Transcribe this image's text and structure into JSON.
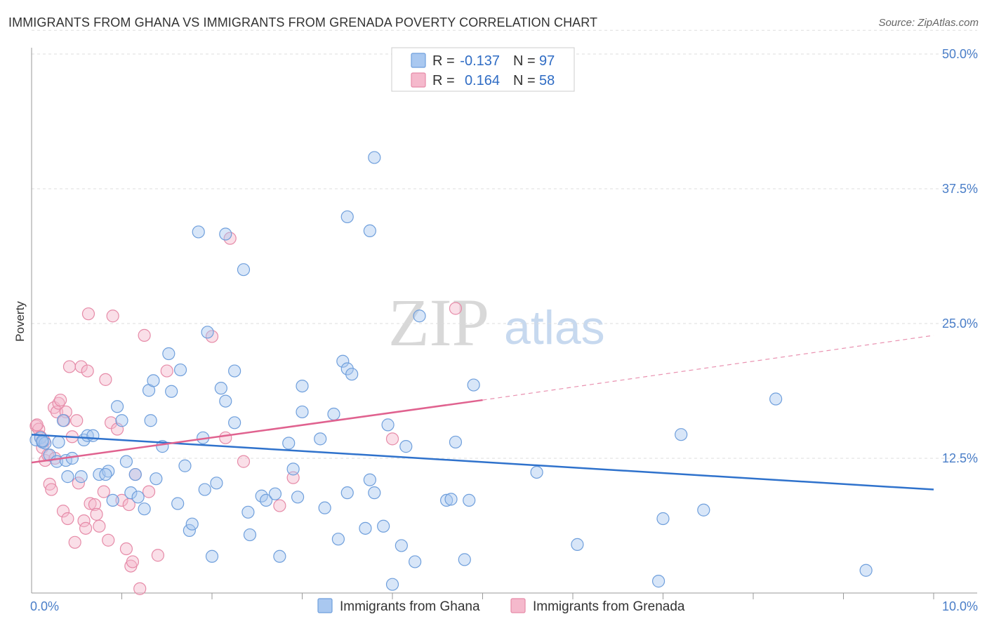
{
  "title": "IMMIGRANTS FROM GHANA VS IMMIGRANTS FROM GRENADA POVERTY CORRELATION CHART",
  "source": "Source: ZipAtlas.com",
  "watermark": {
    "zip": "ZIP",
    "atlas": "atlas"
  },
  "colors": {
    "ghana_fill": "#a9c8f0",
    "ghana_stroke": "#6f9fdc",
    "ghana_line": "#2f72cc",
    "grenada_fill": "#f5b9cc",
    "grenada_stroke": "#e68ba8",
    "grenada_line": "#e0628f",
    "tick_text": "#4a7ec8",
    "grid": "#dddddd"
  },
  "legend": {
    "rows": [
      {
        "r_label": "R =",
        "r_value": "-0.137",
        "n_label": "N =",
        "n_value": "97"
      },
      {
        "r_label": "R =",
        "r_value": "0.164",
        "n_label": "N =",
        "n_value": "58"
      }
    ]
  },
  "bottom_legend": [
    "Immigrants from Ghana",
    "Immigrants from Grenada"
  ],
  "chart_data": {
    "type": "scatter",
    "ylabel": "Poverty",
    "xlabel": "",
    "xlim": [
      0,
      10
    ],
    "ylim": [
      0,
      50
    ],
    "x_tick_labels": [
      "0.0%",
      "10.0%"
    ],
    "y_ticks": [
      12.5,
      25.0,
      37.5,
      50.0
    ],
    "y_tick_labels": [
      "12.5%",
      "25.0%",
      "37.5%",
      "50.0%"
    ],
    "grid": "horizontal dashed",
    "legend_position": "top-center",
    "series": [
      {
        "name": "Immigrants from Ghana",
        "r": -0.137,
        "n": 97,
        "trend": {
          "x": [
            0,
            10
          ],
          "y": [
            14.7,
            9.6
          ]
        },
        "points": [
          [
            0.05,
            14.2
          ],
          [
            0.1,
            14.4
          ],
          [
            0.12,
            14.0
          ],
          [
            0.15,
            13.9
          ],
          [
            0.2,
            12.8
          ],
          [
            0.28,
            12.2
          ],
          [
            0.35,
            16.0
          ],
          [
            0.38,
            12.3
          ],
          [
            0.45,
            12.5
          ],
          [
            0.4,
            10.8
          ],
          [
            0.55,
            10.8
          ],
          [
            0.58,
            14.2
          ],
          [
            0.62,
            14.6
          ],
          [
            0.68,
            14.6
          ],
          [
            0.75,
            11.0
          ],
          [
            0.85,
            11.3
          ],
          [
            0.82,
            11.0
          ],
          [
            0.9,
            8.6
          ],
          [
            0.95,
            17.3
          ],
          [
            1.0,
            16.0
          ],
          [
            1.05,
            12.2
          ],
          [
            1.1,
            9.3
          ],
          [
            1.15,
            11.0
          ],
          [
            1.18,
            8.9
          ],
          [
            1.3,
            18.8
          ],
          [
            1.25,
            7.8
          ],
          [
            1.32,
            16.0
          ],
          [
            1.38,
            10.6
          ],
          [
            1.35,
            19.7
          ],
          [
            1.45,
            13.6
          ],
          [
            1.52,
            22.2
          ],
          [
            1.55,
            18.7
          ],
          [
            1.62,
            8.3
          ],
          [
            1.65,
            20.7
          ],
          [
            1.7,
            11.8
          ],
          [
            1.75,
            5.8
          ],
          [
            1.78,
            6.4
          ],
          [
            1.85,
            33.5
          ],
          [
            1.9,
            14.4
          ],
          [
            1.92,
            9.6
          ],
          [
            1.95,
            24.2
          ],
          [
            2.0,
            3.4
          ],
          [
            2.05,
            10.2
          ],
          [
            2.1,
            19.0
          ],
          [
            2.15,
            33.3
          ],
          [
            2.15,
            17.8
          ],
          [
            2.25,
            20.6
          ],
          [
            2.25,
            15.8
          ],
          [
            2.35,
            30.0
          ],
          [
            2.4,
            7.5
          ],
          [
            2.42,
            5.4
          ],
          [
            2.55,
            9.0
          ],
          [
            2.6,
            8.6
          ],
          [
            2.7,
            9.2
          ],
          [
            2.75,
            3.4
          ],
          [
            2.85,
            13.9
          ],
          [
            2.9,
            11.5
          ],
          [
            2.95,
            8.9
          ],
          [
            3.0,
            16.8
          ],
          [
            3.0,
            19.2
          ],
          [
            3.2,
            14.3
          ],
          [
            3.25,
            7.9
          ],
          [
            3.35,
            16.6
          ],
          [
            3.4,
            5.0
          ],
          [
            3.45,
            21.5
          ],
          [
            3.5,
            9.3
          ],
          [
            3.5,
            20.8
          ],
          [
            3.55,
            20.3
          ],
          [
            3.5,
            34.9
          ],
          [
            3.7,
            6.0
          ],
          [
            3.75,
            10.5
          ],
          [
            3.8,
            9.3
          ],
          [
            3.75,
            33.6
          ],
          [
            3.8,
            40.4
          ],
          [
            3.9,
            6.2
          ],
          [
            3.95,
            15.6
          ],
          [
            4.0,
            0.8
          ],
          [
            4.1,
            4.4
          ],
          [
            4.15,
            13.6
          ],
          [
            4.25,
            2.9
          ],
          [
            4.3,
            25.7
          ],
          [
            4.6,
            8.6
          ],
          [
            4.65,
            8.7
          ],
          [
            4.7,
            14.0
          ],
          [
            4.8,
            3.1
          ],
          [
            4.85,
            8.6
          ],
          [
            4.9,
            19.3
          ],
          [
            5.6,
            11.2
          ],
          [
            6.05,
            4.5
          ],
          [
            6.95,
            1.1
          ],
          [
            7.0,
            6.9
          ],
          [
            7.2,
            14.7
          ],
          [
            7.45,
            7.7
          ],
          [
            8.25,
            18.0
          ],
          [
            9.25,
            2.1
          ],
          [
            0.3,
            14.0
          ],
          [
            0.12,
            14.1
          ]
        ]
      },
      {
        "name": "Immigrants from Grenada",
        "r": 0.164,
        "n": 58,
        "trend": {
          "x": [
            0,
            5
          ],
          "y": [
            12.1,
            17.9
          ]
        },
        "trend_extension": {
          "x": [
            5,
            10
          ],
          "y": [
            17.9,
            23.9
          ]
        },
        "points": [
          [
            0.05,
            15.5
          ],
          [
            0.08,
            15.2
          ],
          [
            0.1,
            14.5
          ],
          [
            0.12,
            13.5
          ],
          [
            0.15,
            12.3
          ],
          [
            0.18,
            12.8
          ],
          [
            0.2,
            10.1
          ],
          [
            0.22,
            9.6
          ],
          [
            0.25,
            17.2
          ],
          [
            0.28,
            16.8
          ],
          [
            0.3,
            17.6
          ],
          [
            0.32,
            17.9
          ],
          [
            0.35,
            7.6
          ],
          [
            0.38,
            16.8
          ],
          [
            0.4,
            6.9
          ],
          [
            0.42,
            21.0
          ],
          [
            0.45,
            14.5
          ],
          [
            0.48,
            4.7
          ],
          [
            0.5,
            16.0
          ],
          [
            0.52,
            10.2
          ],
          [
            0.55,
            21.0
          ],
          [
            0.58,
            6.7
          ],
          [
            0.6,
            6.0
          ],
          [
            0.62,
            20.6
          ],
          [
            0.63,
            25.9
          ],
          [
            0.65,
            8.3
          ],
          [
            0.7,
            8.2
          ],
          [
            0.72,
            7.3
          ],
          [
            0.75,
            6.2
          ],
          [
            0.8,
            9.4
          ],
          [
            0.82,
            19.8
          ],
          [
            0.85,
            4.9
          ],
          [
            0.88,
            15.8
          ],
          [
            0.9,
            25.7
          ],
          [
            0.95,
            15.2
          ],
          [
            1.0,
            8.6
          ],
          [
            1.05,
            4.1
          ],
          [
            1.08,
            8.2
          ],
          [
            1.1,
            2.5
          ],
          [
            1.12,
            2.9
          ],
          [
            1.15,
            11.0
          ],
          [
            1.2,
            0.4
          ],
          [
            1.25,
            23.9
          ],
          [
            1.3,
            9.4
          ],
          [
            1.4,
            3.5
          ],
          [
            1.5,
            20.6
          ],
          [
            2.0,
            23.8
          ],
          [
            2.15,
            14.4
          ],
          [
            2.2,
            32.9
          ],
          [
            2.35,
            12.2
          ],
          [
            2.75,
            8.1
          ],
          [
            2.9,
            10.7
          ],
          [
            4.0,
            14.3
          ],
          [
            4.7,
            26.4
          ],
          [
            0.06,
            15.6
          ],
          [
            0.14,
            14.1
          ],
          [
            0.26,
            12.5
          ],
          [
            0.36,
            16.0
          ]
        ]
      }
    ]
  }
}
